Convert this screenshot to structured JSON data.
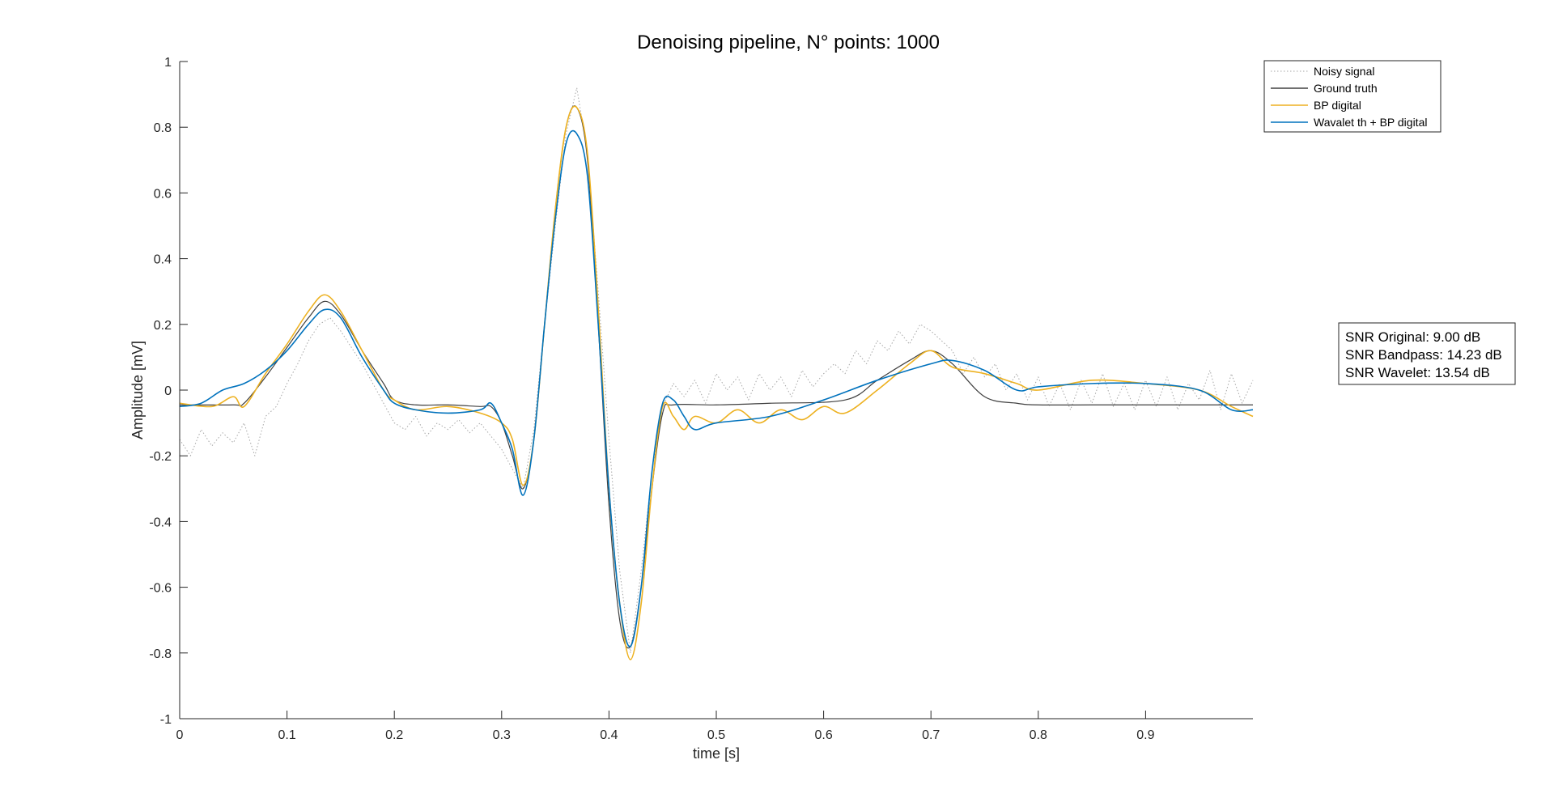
{
  "chart_data": {
    "type": "line",
    "title": "Denoising pipeline, N° points: 1000",
    "xlabel": "time [s]",
    "ylabel": "Amplitude [mV]",
    "xlim": [
      0,
      1
    ],
    "ylim": [
      -1,
      1
    ],
    "xticks": [
      0,
      0.1,
      0.2,
      0.3,
      0.4,
      0.5,
      0.6,
      0.7,
      0.8,
      0.9
    ],
    "xtick_labels": [
      "0",
      "0.1",
      "0.2",
      "0.3",
      "0.4",
      "0.5",
      "0.6",
      "0.7",
      "0.8",
      "0.9"
    ],
    "yticks": [
      -1,
      -0.8,
      -0.6,
      -0.4,
      -0.2,
      0,
      0.2,
      0.4,
      0.6,
      0.8,
      1
    ],
    "ytick_labels": [
      "-1",
      "-0.8",
      "-0.6",
      "-0.4",
      "-0.2",
      "0",
      "0.2",
      "0.4",
      "0.6",
      "0.8",
      "1"
    ],
    "grid": false,
    "legend_position": "top-right",
    "series": [
      {
        "name": "Noisy signal",
        "color": "#a6a6a6",
        "style": "dotted",
        "x": [
          0,
          0.01,
          0.02,
          0.03,
          0.04,
          0.05,
          0.06,
          0.07,
          0.08,
          0.09,
          0.1,
          0.11,
          0.12,
          0.13,
          0.14,
          0.15,
          0.16,
          0.17,
          0.18,
          0.19,
          0.2,
          0.21,
          0.22,
          0.23,
          0.24,
          0.25,
          0.26,
          0.27,
          0.28,
          0.29,
          0.3,
          0.31,
          0.32,
          0.33,
          0.34,
          0.35,
          0.36,
          0.37,
          0.38,
          0.39,
          0.4,
          0.41,
          0.42,
          0.43,
          0.44,
          0.45,
          0.46,
          0.47,
          0.48,
          0.49,
          0.5,
          0.51,
          0.52,
          0.53,
          0.54,
          0.55,
          0.56,
          0.57,
          0.58,
          0.59,
          0.6,
          0.61,
          0.62,
          0.63,
          0.64,
          0.65,
          0.66,
          0.67,
          0.68,
          0.69,
          0.7,
          0.71,
          0.72,
          0.73,
          0.74,
          0.75,
          0.76,
          0.77,
          0.78,
          0.79,
          0.8,
          0.81,
          0.82,
          0.83,
          0.84,
          0.85,
          0.86,
          0.87,
          0.88,
          0.89,
          0.9,
          0.91,
          0.92,
          0.93,
          0.94,
          0.95,
          0.96,
          0.97,
          0.98,
          0.99,
          1.0
        ],
        "y": [
          -0.15,
          -0.2,
          -0.12,
          -0.17,
          -0.13,
          -0.16,
          -0.1,
          -0.2,
          -0.08,
          -0.05,
          0.02,
          0.08,
          0.15,
          0.2,
          0.22,
          0.18,
          0.13,
          0.08,
          0.02,
          -0.04,
          -0.1,
          -0.12,
          -0.08,
          -0.14,
          -0.1,
          -0.12,
          -0.09,
          -0.13,
          -0.1,
          -0.14,
          -0.18,
          -0.24,
          -0.3,
          -0.12,
          0.2,
          0.5,
          0.78,
          0.92,
          0.72,
          0.3,
          -0.15,
          -0.55,
          -0.8,
          -0.55,
          -0.25,
          -0.05,
          0.02,
          -0.02,
          0.03,
          -0.04,
          0.05,
          0.0,
          0.04,
          -0.03,
          0.05,
          0.0,
          0.04,
          -0.02,
          0.06,
          0.01,
          0.05,
          0.08,
          0.05,
          0.12,
          0.08,
          0.15,
          0.12,
          0.18,
          0.14,
          0.2,
          0.18,
          0.15,
          0.12,
          0.05,
          0.1,
          0.04,
          0.08,
          0.0,
          0.05,
          -0.03,
          0.04,
          -0.05,
          0.02,
          -0.06,
          0.03,
          -0.04,
          0.05,
          -0.05,
          0.02,
          -0.06,
          0.03,
          -0.05,
          0.04,
          -0.06,
          0.02,
          -0.03,
          0.06,
          -0.06,
          0.05,
          -0.04,
          0.03
        ]
      },
      {
        "name": "Ground truth",
        "color": "#404040",
        "style": "solid",
        "x": [
          0,
          0.05,
          0.06,
          0.08,
          0.1,
          0.12,
          0.135,
          0.15,
          0.17,
          0.19,
          0.2,
          0.22,
          0.25,
          0.28,
          0.29,
          0.3,
          0.31,
          0.32,
          0.33,
          0.34,
          0.35,
          0.36,
          0.37,
          0.38,
          0.39,
          0.4,
          0.41,
          0.42,
          0.43,
          0.44,
          0.45,
          0.46,
          0.5,
          0.55,
          0.62,
          0.65,
          0.68,
          0.7,
          0.72,
          0.75,
          0.78,
          0.8,
          0.85,
          0.9,
          0.95,
          1.0
        ],
        "y": [
          -0.045,
          -0.045,
          -0.04,
          0.04,
          0.13,
          0.22,
          0.27,
          0.23,
          0.12,
          0.02,
          -0.03,
          -0.045,
          -0.045,
          -0.05,
          -0.05,
          -0.1,
          -0.2,
          -0.3,
          -0.15,
          0.2,
          0.55,
          0.8,
          0.86,
          0.7,
          0.2,
          -0.35,
          -0.7,
          -0.78,
          -0.6,
          -0.3,
          -0.07,
          -0.045,
          -0.045,
          -0.04,
          -0.03,
          0.03,
          0.09,
          0.12,
          0.08,
          -0.02,
          -0.04,
          -0.045,
          -0.045,
          -0.045,
          -0.045,
          -0.045
        ]
      },
      {
        "name": "BP digital",
        "color": "#edb120",
        "style": "solid",
        "x": [
          0,
          0.03,
          0.05,
          0.06,
          0.08,
          0.1,
          0.12,
          0.135,
          0.15,
          0.17,
          0.19,
          0.2,
          0.22,
          0.25,
          0.28,
          0.3,
          0.31,
          0.32,
          0.33,
          0.34,
          0.35,
          0.36,
          0.37,
          0.38,
          0.39,
          0.4,
          0.41,
          0.42,
          0.43,
          0.44,
          0.45,
          0.46,
          0.47,
          0.48,
          0.5,
          0.52,
          0.54,
          0.56,
          0.58,
          0.6,
          0.62,
          0.65,
          0.68,
          0.7,
          0.72,
          0.75,
          0.78,
          0.8,
          0.85,
          0.9,
          0.95,
          0.98,
          1.0
        ],
        "y": [
          -0.04,
          -0.05,
          -0.02,
          -0.05,
          0.05,
          0.14,
          0.24,
          0.29,
          0.24,
          0.12,
          0.0,
          -0.03,
          -0.06,
          -0.05,
          -0.07,
          -0.1,
          -0.15,
          -0.29,
          -0.15,
          0.2,
          0.55,
          0.8,
          0.86,
          0.72,
          0.25,
          -0.3,
          -0.65,
          -0.82,
          -0.65,
          -0.3,
          -0.05,
          -0.08,
          -0.12,
          -0.08,
          -0.1,
          -0.06,
          -0.1,
          -0.06,
          -0.09,
          -0.05,
          -0.07,
          0.0,
          0.08,
          0.12,
          0.07,
          0.05,
          0.02,
          0.0,
          0.03,
          0.02,
          0.0,
          -0.05,
          -0.08
        ]
      },
      {
        "name": "Wavalet th + BP digital",
        "color": "#0072bd",
        "style": "solid",
        "x": [
          0,
          0.02,
          0.04,
          0.06,
          0.08,
          0.1,
          0.12,
          0.135,
          0.15,
          0.17,
          0.19,
          0.2,
          0.22,
          0.25,
          0.28,
          0.29,
          0.3,
          0.31,
          0.32,
          0.33,
          0.34,
          0.35,
          0.36,
          0.37,
          0.38,
          0.39,
          0.4,
          0.41,
          0.42,
          0.43,
          0.44,
          0.45,
          0.46,
          0.47,
          0.48,
          0.5,
          0.55,
          0.6,
          0.65,
          0.7,
          0.72,
          0.75,
          0.78,
          0.8,
          0.85,
          0.9,
          0.95,
          0.98,
          1.0
        ],
        "y": [
          -0.05,
          -0.04,
          0.0,
          0.02,
          0.06,
          0.12,
          0.2,
          0.245,
          0.22,
          0.1,
          0.0,
          -0.04,
          -0.06,
          -0.07,
          -0.06,
          -0.04,
          -0.1,
          -0.18,
          -0.32,
          -0.15,
          0.2,
          0.52,
          0.75,
          0.78,
          0.65,
          0.2,
          -0.3,
          -0.65,
          -0.78,
          -0.6,
          -0.25,
          -0.04,
          -0.03,
          -0.08,
          -0.12,
          -0.1,
          -0.08,
          -0.03,
          0.03,
          0.08,
          0.09,
          0.06,
          0.0,
          0.01,
          0.02,
          0.02,
          0.0,
          -0.06,
          -0.06
        ]
      }
    ],
    "snr_box": {
      "lines": [
        "SNR Original: 9.00 dB",
        "SNR Bandpass: 14.23 dB",
        "SNR Wavelet: 13.54 dB"
      ]
    }
  }
}
